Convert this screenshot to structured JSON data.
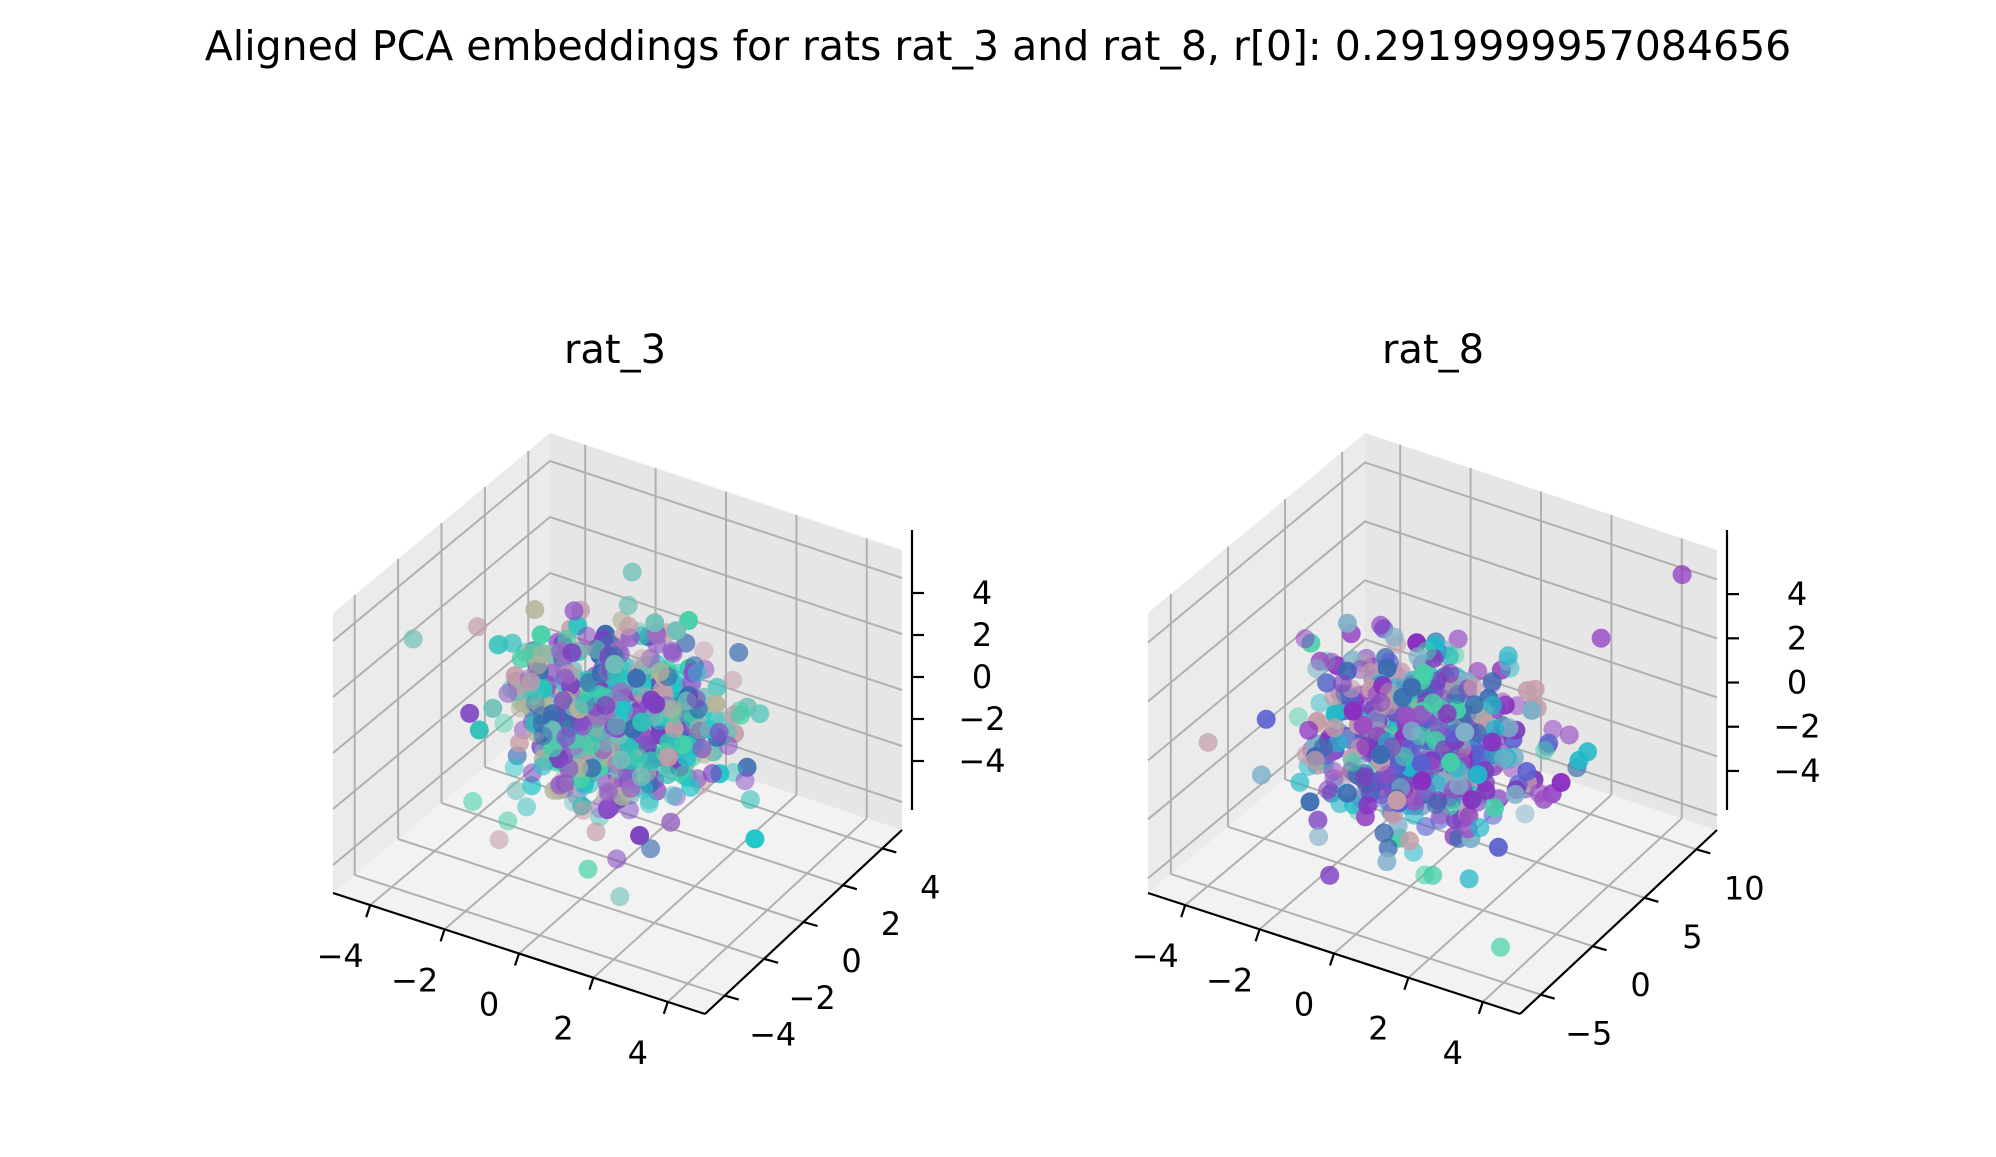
{
  "figure": {
    "suptitle": "Aligned PCA embeddings for rats rat_3 and rat_8, r[0]: 0.2919999957084656"
  },
  "chart_data": [
    {
      "type": "scatter",
      "projection": "3d",
      "title": "rat_3",
      "x_ticks": [
        "−4",
        "−2",
        "0",
        "2",
        "4"
      ],
      "y_ticks": [
        "−4",
        "−2",
        "0",
        "2",
        "4"
      ],
      "z_ticks": [
        "−4",
        "−2",
        "0",
        "2",
        "4"
      ],
      "xlim": [
        -5,
        5
      ],
      "ylim": [
        -5,
        5
      ],
      "zlim": [
        -5,
        5
      ],
      "grid": true,
      "legend": "none",
      "colors": [
        "#7b3fbf",
        "#8a4fc9",
        "#3a6bb0",
        "#2fbfb8",
        "#45d0a8",
        "#6fc0b8",
        "#b4b39a",
        "#c49ca8",
        "#9a6bc2",
        "#20c7c9"
      ],
      "points_note": "approx. 600 points, roughly Gaussian cloud centered near origin with spread ~1.5; colors vary by sample index (cool palette)",
      "outliers": [
        [
          -4.7,
          -1.5,
          1.9
        ],
        [
          -3.5,
          -0.5,
          2.2
        ],
        [
          -3.0,
          -0.4,
          1.7
        ],
        [
          2.2,
          2.0,
          2.1
        ]
      ]
    },
    {
      "type": "scatter",
      "projection": "3d",
      "title": "rat_8",
      "x_ticks": [
        "−4",
        "−2",
        "0",
        "2",
        "4"
      ],
      "y_ticks": [
        "−5",
        "0",
        "5",
        "10"
      ],
      "z_ticks": [
        "−4",
        "−2",
        "0",
        "2",
        "4"
      ],
      "xlim": [
        -5,
        5
      ],
      "ylim": [
        -7,
        12
      ],
      "zlim": [
        -4.5,
        5
      ],
      "grid": true,
      "legend": "none",
      "colors": [
        "#7b3fbf",
        "#8a2fc0",
        "#3a6bb0",
        "#20b8c9",
        "#45d0a8",
        "#7fb0c8",
        "#c49ca8",
        "#9a4fc2",
        "#5a5fd0"
      ],
      "points_note": "approx. 600 points, dense cloud, spread along y up to ~10",
      "outliers": [
        [
          4.2,
          11.5,
          4.0
        ],
        [
          3.0,
          8.0,
          2.5
        ],
        [
          -4.5,
          -3.0,
          -0.5
        ],
        [
          3.5,
          -3.5,
          -4.0
        ]
      ]
    }
  ]
}
